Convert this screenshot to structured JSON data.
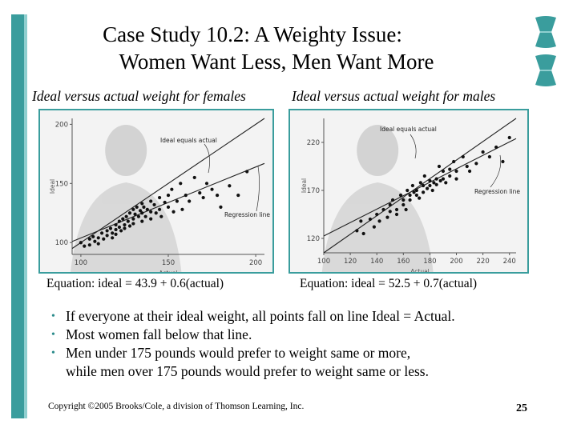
{
  "title": {
    "line1": "Case Study 10.2:    A Weighty Issue:",
    "line2": "Women Want Less, Men Want More"
  },
  "females": {
    "subtitle": "Ideal versus actual weight for females",
    "equation": "Equation:  ideal = 43.9 + 0.6(actual)",
    "ideal_label": "Ideal equals actual",
    "regression_label": "Regression line",
    "xlabel": "Actual",
    "ylabel": "Ideal"
  },
  "males": {
    "subtitle": "Ideal versus actual weight for males",
    "equation": "Equation:  ideal = 52.5 + 0.7(actual)",
    "ideal_label": "Ideal equals actual",
    "regression_label": "Regression line",
    "xlabel": "Actual",
    "ylabel": "Ideal"
  },
  "bullets": [
    "If everyone at their ideal weight, all points fall on line Ideal = Actual.",
    "Most women fall below that line.",
    "Men under 175 pounds would prefer to weight same or more,",
    "while men over 175 pounds would prefer to weight same or less."
  ],
  "copyright": "Copyright ©2005 Brooks/Cole, a division of Thomson Learning, Inc.",
  "page_number": "25",
  "colors": {
    "accent": "#3a9d9d",
    "panel_bg": "#f3f3f3"
  },
  "chart_data": [
    {
      "type": "scatter",
      "title": "Ideal versus actual weight for females",
      "xlabel": "Actual",
      "ylabel": "Ideal",
      "xlim": [
        95,
        205
      ],
      "ylim": [
        90,
        205
      ],
      "xticks": [
        100,
        150,
        200
      ],
      "yticks": [
        100,
        150,
        200
      ],
      "grid": false,
      "lines": [
        {
          "name": "Ideal equals actual",
          "intercept": 0,
          "slope": 1
        },
        {
          "name": "Regression line",
          "intercept": 43.9,
          "slope": 0.6
        }
      ],
      "points": [
        [
          100,
          100
        ],
        [
          102,
          97
        ],
        [
          105,
          103
        ],
        [
          105,
          98
        ],
        [
          107,
          105
        ],
        [
          108,
          101
        ],
        [
          110,
          104
        ],
        [
          110,
          99
        ],
        [
          112,
          108
        ],
        [
          113,
          103
        ],
        [
          115,
          110
        ],
        [
          115,
          106
        ],
        [
          117,
          112
        ],
        [
          118,
          108
        ],
        [
          118,
          104
        ],
        [
          120,
          115
        ],
        [
          120,
          111
        ],
        [
          120,
          107
        ],
        [
          122,
          118
        ],
        [
          122,
          113
        ],
        [
          123,
          110
        ],
        [
          124,
          120
        ],
        [
          125,
          115
        ],
        [
          125,
          112
        ],
        [
          126,
          122
        ],
        [
          127,
          118
        ],
        [
          128,
          125
        ],
        [
          128,
          114
        ],
        [
          130,
          128
        ],
        [
          130,
          120
        ],
        [
          130,
          116
        ],
        [
          131,
          124
        ],
        [
          132,
          130
        ],
        [
          133,
          122
        ],
        [
          134,
          127
        ],
        [
          135,
          133
        ],
        [
          135,
          125
        ],
        [
          135,
          118
        ],
        [
          136,
          130
        ],
        [
          137,
          122
        ],
        [
          138,
          128
        ],
        [
          140,
          135
        ],
        [
          140,
          126
        ],
        [
          140,
          120
        ],
        [
          142,
          132
        ],
        [
          143,
          125
        ],
        [
          145,
          138
        ],
        [
          145,
          128
        ],
        [
          146,
          122
        ],
        [
          148,
          134
        ],
        [
          150,
          140
        ],
        [
          150,
          130
        ],
        [
          152,
          145
        ],
        [
          153,
          126
        ],
        [
          155,
          135
        ],
        [
          157,
          150
        ],
        [
          158,
          128
        ],
        [
          160,
          140
        ],
        [
          162,
          135
        ],
        [
          165,
          155
        ],
        [
          168,
          142
        ],
        [
          170,
          138
        ],
        [
          172,
          150
        ],
        [
          175,
          145
        ],
        [
          178,
          140
        ],
        [
          180,
          130
        ],
        [
          185,
          148
        ],
        [
          190,
          140
        ],
        [
          195,
          160
        ]
      ]
    },
    {
      "type": "scatter",
      "title": "Ideal versus actual weight for males",
      "xlabel": "Actual",
      "ylabel": "Ideal",
      "xlim": [
        100,
        245
      ],
      "ylim": [
        105,
        245
      ],
      "xticks": [
        100,
        120,
        140,
        160,
        180,
        200,
        220,
        240
      ],
      "yticks": [
        120,
        170,
        220
      ],
      "grid": false,
      "lines": [
        {
          "name": "Ideal equals actual",
          "intercept": 0,
          "slope": 1
        },
        {
          "name": "Regression line",
          "intercept": 52.5,
          "slope": 0.7
        }
      ],
      "points": [
        [
          125,
          128
        ],
        [
          128,
          138
        ],
        [
          130,
          125
        ],
        [
          135,
          140
        ],
        [
          138,
          132
        ],
        [
          140,
          145
        ],
        [
          142,
          138
        ],
        [
          145,
          150
        ],
        [
          148,
          142
        ],
        [
          150,
          155
        ],
        [
          150,
          148
        ],
        [
          152,
          160
        ],
        [
          155,
          150
        ],
        [
          155,
          145
        ],
        [
          158,
          165
        ],
        [
          160,
          160
        ],
        [
          160,
          155
        ],
        [
          162,
          150
        ],
        [
          163,
          170
        ],
        [
          165,
          165
        ],
        [
          165,
          160
        ],
        [
          167,
          175
        ],
        [
          168,
          168
        ],
        [
          170,
          170
        ],
        [
          170,
          165
        ],
        [
          172,
          162
        ],
        [
          173,
          178
        ],
        [
          175,
          175
        ],
        [
          175,
          168
        ],
        [
          176,
          185
        ],
        [
          178,
          172
        ],
        [
          180,
          180
        ],
        [
          180,
          175
        ],
        [
          182,
          170
        ],
        [
          183,
          178
        ],
        [
          185,
          182
        ],
        [
          185,
          176
        ],
        [
          187,
          195
        ],
        [
          188,
          180
        ],
        [
          190,
          190
        ],
        [
          190,
          182
        ],
        [
          192,
          178
        ],
        [
          195,
          192
        ],
        [
          195,
          185
        ],
        [
          198,
          200
        ],
        [
          200,
          190
        ],
        [
          200,
          182
        ],
        [
          205,
          205
        ],
        [
          208,
          195
        ],
        [
          210,
          190
        ],
        [
          215,
          198
        ],
        [
          220,
          210
        ],
        [
          225,
          205
        ],
        [
          230,
          215
        ],
        [
          235,
          200
        ],
        [
          240,
          225
        ]
      ]
    }
  ]
}
